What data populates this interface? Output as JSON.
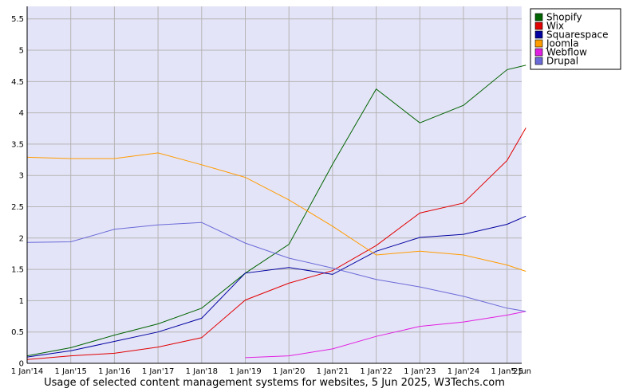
{
  "chart_data": {
    "type": "line",
    "title": "",
    "xlabel": "",
    "ylabel": "",
    "caption": "Usage of selected content management systems for websites, 5 Jun 2025, W3Techs.com",
    "x": [
      "1 Jan'14",
      "1 Jan'15",
      "1 Jan'16",
      "1 Jan'17",
      "1 Jan'18",
      "1 Jan'19",
      "1 Jan'20",
      "1 Jan'21",
      "1 Jan'22",
      "1 Jan'23",
      "1 Jan'24",
      "1 Jan'25",
      "5 Jun"
    ],
    "x_positions": [
      0,
      1,
      2,
      3,
      4,
      5,
      6,
      7,
      8,
      9,
      10,
      11,
      11.43
    ],
    "ylim": [
      0,
      5.7
    ],
    "yticks": [
      0,
      0.5,
      1,
      1.5,
      2,
      2.5,
      3,
      3.5,
      4,
      4.5,
      5,
      5.5
    ],
    "ytick_labels": [
      "0",
      "0.5",
      "1",
      "1.5",
      "2",
      "2.5",
      "3",
      "3.5",
      "4",
      "4.5",
      "5",
      "5.5"
    ],
    "grid": true,
    "legend_position": "top-right",
    "background": "#e4e4f8",
    "grid_color": "#b4b4b4",
    "series": [
      {
        "name": "Shopify",
        "color": "#006400",
        "values": [
          0.12,
          0.25,
          0.45,
          0.63,
          0.88,
          1.44,
          1.9,
          3.18,
          4.38,
          3.84,
          4.12,
          4.69,
          4.76
        ]
      },
      {
        "name": "Wix",
        "color": "#e00000",
        "values": [
          0.06,
          0.12,
          0.16,
          0.26,
          0.41,
          1.01,
          1.28,
          1.48,
          1.88,
          2.4,
          2.56,
          3.24,
          3.76
        ]
      },
      {
        "name": "Squarespace",
        "color": "#0000a0",
        "values": [
          0.1,
          0.2,
          0.35,
          0.5,
          0.72,
          1.44,
          1.53,
          1.42,
          1.79,
          2.01,
          2.06,
          2.22,
          2.35
        ]
      },
      {
        "name": "Joomla",
        "color": "#ff9c00",
        "values": [
          3.29,
          3.27,
          3.27,
          3.36,
          3.17,
          2.97,
          2.61,
          2.19,
          1.73,
          1.79,
          1.73,
          1.57,
          1.47
        ]
      },
      {
        "name": "Webflow",
        "color": "#e020e0",
        "values": [
          null,
          null,
          null,
          null,
          null,
          0.09,
          0.12,
          0.23,
          0.43,
          0.59,
          0.66,
          0.77,
          0.83
        ]
      },
      {
        "name": "Drupal",
        "color": "#6a6ad8",
        "values": [
          1.93,
          1.94,
          2.14,
          2.21,
          2.25,
          1.92,
          1.68,
          1.52,
          1.34,
          1.22,
          1.07,
          0.88,
          0.83
        ]
      }
    ]
  }
}
